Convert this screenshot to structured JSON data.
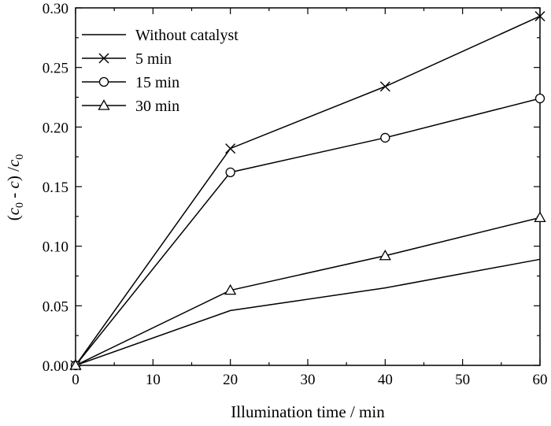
{
  "chart_data": {
    "type": "line",
    "title": "",
    "xlabel": "Illumination time / min",
    "ylabel": {
      "open": "(",
      "c0_symbol": "c",
      "c0_subscript": "0",
      "minus": " - ",
      "c_symbol": "c",
      "close": ") /",
      "denominator_symbol": "c",
      "denominator_subscript": "0"
    },
    "xlim": [
      0,
      60
    ],
    "ylim": [
      0,
      0.3
    ],
    "xticks": [
      "0",
      "10",
      "20",
      "30",
      "40",
      "50",
      "60"
    ],
    "yticks": [
      "0.00",
      "0.05",
      "0.10",
      "0.15",
      "0.20",
      "0.25",
      "0.30"
    ],
    "grid": false,
    "legend_position": "top-left",
    "x": [
      0,
      20,
      40,
      60
    ],
    "series": [
      {
        "name": "Without catalyst",
        "marker": "none",
        "values": [
          0,
          0.046,
          0.065,
          0.089
        ]
      },
      {
        "name": "5 min",
        "marker": "x",
        "values": [
          0,
          0.182,
          0.234,
          0.293
        ]
      },
      {
        "name": "15 min",
        "marker": "circle",
        "values": [
          0,
          0.162,
          0.191,
          0.224
        ]
      },
      {
        "name": "30 min",
        "marker": "triangle",
        "values": [
          0,
          0.063,
          0.092,
          0.124
        ]
      }
    ]
  }
}
